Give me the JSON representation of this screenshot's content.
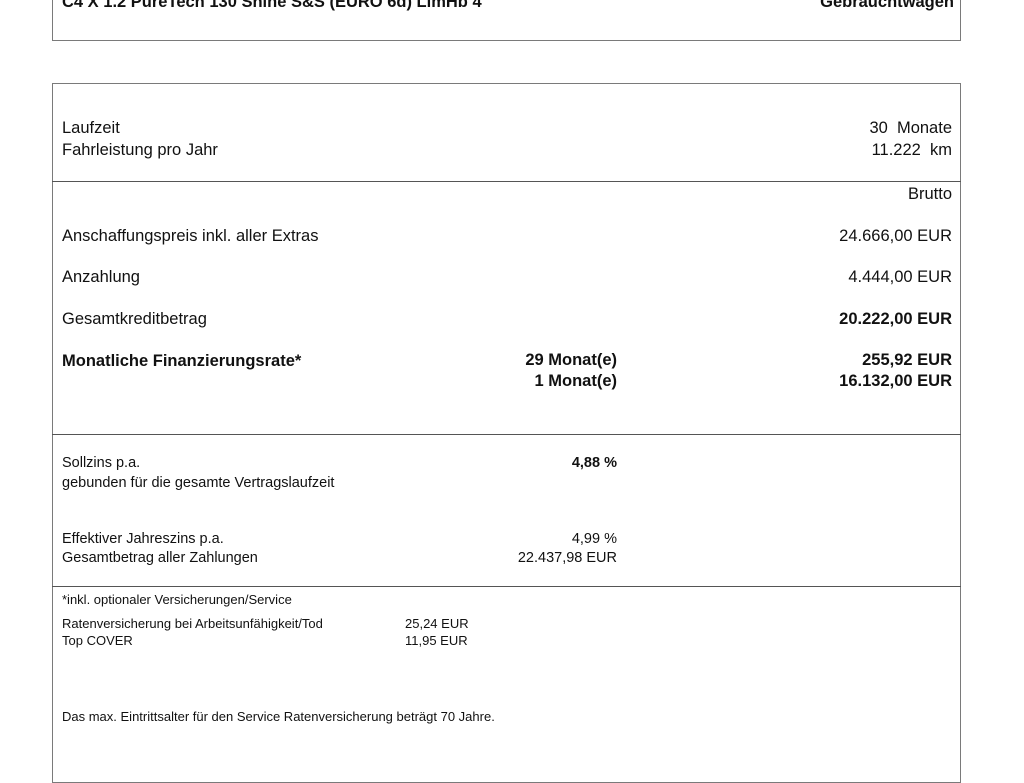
{
  "header": {
    "model": "C4 X 1.2 PureTech 130 Shine S&S (EURO 6d) LimHb 4",
    "condition": "Gebrauchtwagen"
  },
  "term": {
    "laufzeit_label": "Laufzeit",
    "laufzeit_value": "30  Monate",
    "fahrleistung_label": "Fahrleistung pro Jahr",
    "fahrleistung_value": "11.222  km"
  },
  "prices": {
    "column_header": "Brutto",
    "anschaffung_label": "Anschaffungspreis inkl. aller Extras",
    "anschaffung_value": "24.666,00 EUR",
    "anzahlung_label": "Anzahlung",
    "anzahlung_value": "4.444,00 EUR",
    "gesamtkredit_label": "Gesamtkreditbetrag",
    "gesamtkredit_value": "20.222,00 EUR",
    "rate_label": "Monatliche Finanzierungsrate*",
    "rate1_months": "29 Monat(e)",
    "rate1_value": "255,92 EUR",
    "rate2_months": "1 Monat(e)",
    "rate2_value": "16.132,00 EUR"
  },
  "interest": {
    "sollzins_label": "Sollzins p.a.",
    "sollzins_value": "4,88 %",
    "sollzins_note": "gebunden für die gesamte Vertragslaufzeit",
    "effektiv_label": "Effektiver Jahreszins p.a.",
    "effektiv_value": "4,99 %",
    "gesamtbetrag_label": "Gesamtbetrag aller Zahlungen",
    "gesamtbetrag_value": "22.437,98 EUR"
  },
  "insurance": {
    "note": "*inkl. optionaler Versicherungen/Service",
    "items": [
      {
        "label": "Ratenversicherung bei Arbeitsunfähigkeit/Tod",
        "value": "25,24 EUR"
      },
      {
        "label": "Top COVER",
        "value": "11,95 EUR"
      }
    ],
    "footer": "Das max. Eintrittsalter für den Service Ratenversicherung beträgt 70 Jahre."
  }
}
